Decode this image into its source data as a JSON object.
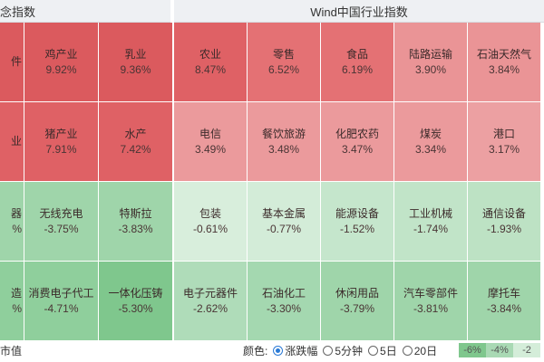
{
  "left_panel": {
    "title": "念指数",
    "cells": [
      {
        "name": "件",
        "pct": "",
        "color": "#db5a5e"
      },
      {
        "name": "鸡产业",
        "pct": "9.92%",
        "color": "#db5a5e"
      },
      {
        "name": "乳业",
        "pct": "9.36%",
        "color": "#db5a5e"
      },
      {
        "name": "业",
        "pct": "",
        "color": "#df6165"
      },
      {
        "name": "猪产业",
        "pct": "7.91%",
        "color": "#df6165"
      },
      {
        "name": "水产",
        "pct": "7.42%",
        "color": "#df6165"
      },
      {
        "name": "器",
        "pct": "%",
        "color": "#9fd5aa"
      },
      {
        "name": "无线充电",
        "pct": "-3.75%",
        "color": "#9fd5aa"
      },
      {
        "name": "特斯拉",
        "pct": "-3.83%",
        "color": "#9fd5aa"
      },
      {
        "name": "造",
        "pct": "%",
        "color": "#8fcf9c"
      },
      {
        "name": "消费电子代工",
        "pct": "-4.71%",
        "color": "#8fcf9c"
      },
      {
        "name": "一体化压铸",
        "pct": "-5.30%",
        "color": "#7fc78d"
      }
    ]
  },
  "right_panel": {
    "title": "Wind中国行业指数",
    "cells": [
      {
        "name": "农业",
        "pct": "8.47%",
        "color": "#df6165"
      },
      {
        "name": "零售",
        "pct": "6.52%",
        "color": "#e47174"
      },
      {
        "name": "食品",
        "pct": "6.19%",
        "color": "#e47174"
      },
      {
        "name": "陆路运输",
        "pct": "3.90%",
        "color": "#ea9496"
      },
      {
        "name": "石油天然气",
        "pct": "3.84%",
        "color": "#ea9496"
      },
      {
        "name": "电信",
        "pct": "3.49%",
        "color": "#eb9a9c"
      },
      {
        "name": "餐饮旅游",
        "pct": "3.48%",
        "color": "#eb9a9c"
      },
      {
        "name": "化肥农药",
        "pct": "3.47%",
        "color": "#eb9a9c"
      },
      {
        "name": "煤炭",
        "pct": "3.34%",
        "color": "#eb9a9c"
      },
      {
        "name": "港口",
        "pct": "3.17%",
        "color": "#eca0a2"
      },
      {
        "name": "包装",
        "pct": "-0.61%",
        "color": "#d8eedc"
      },
      {
        "name": "基本金属",
        "pct": "-0.77%",
        "color": "#d3ecd8"
      },
      {
        "name": "能源设备",
        "pct": "-1.52%",
        "color": "#c5e6cc"
      },
      {
        "name": "工业机械",
        "pct": "-1.74%",
        "color": "#c1e4c8"
      },
      {
        "name": "通信设备",
        "pct": "-1.93%",
        "color": "#bde2c4"
      },
      {
        "name": "电子元器件",
        "pct": "-2.62%",
        "color": "#afdcb9"
      },
      {
        "name": "石油化工",
        "pct": "-3.30%",
        "color": "#a4d8b0"
      },
      {
        "name": "休闲用品",
        "pct": "-3.79%",
        "color": "#9fd5aa"
      },
      {
        "name": "汽车零部件",
        "pct": "-3.81%",
        "color": "#9fd5aa"
      },
      {
        "name": "摩托车",
        "pct": "-3.84%",
        "color": "#9fd5aa"
      }
    ]
  },
  "footer": {
    "left_label": "市值",
    "color_label": "颜色:",
    "options": [
      {
        "label": "涨跌幅",
        "selected": true
      },
      {
        "label": "5分钟",
        "selected": false
      },
      {
        "label": "5日",
        "selected": false
      },
      {
        "label": "20日",
        "selected": false
      }
    ],
    "legend": [
      {
        "label": "-6%",
        "color": "#7fc78d"
      },
      {
        "label": "-4%",
        "color": "#a9d9b4"
      },
      {
        "label": "-2",
        "color": "#d4edd9"
      }
    ]
  }
}
